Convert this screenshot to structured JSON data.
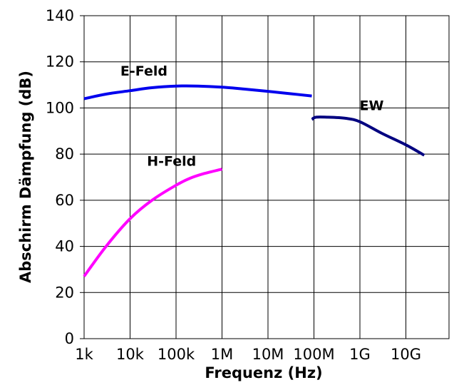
{
  "chart_data": {
    "type": "line",
    "xlabel": "Frequenz (Hz)",
    "ylabel": "Abschirm Dämpfung (dB)",
    "x_scale": "log",
    "xlim": [
      1000,
      100000000000
    ],
    "ylim": [
      0,
      140
    ],
    "grid": true,
    "x_ticks": [
      {
        "value": 1000,
        "label": "1k"
      },
      {
        "value": 10000,
        "label": "10k"
      },
      {
        "value": 100000,
        "label": "100k"
      },
      {
        "value": 1000000,
        "label": "1M"
      },
      {
        "value": 10000000,
        "label": "10M"
      },
      {
        "value": 100000000,
        "label": "100M"
      },
      {
        "value": 1000000000,
        "label": "1G"
      },
      {
        "value": 10000000000,
        "label": "10G"
      }
    ],
    "y_ticks": [
      0,
      20,
      40,
      60,
      80,
      100,
      120,
      140
    ],
    "series": [
      {
        "name": "E-Feld",
        "color": "#0000ee",
        "label_at": [
          20000,
          114
        ],
        "points": [
          [
            1000,
            104
          ],
          [
            3000,
            106
          ],
          [
            10000,
            107.5
          ],
          [
            30000,
            108.8
          ],
          [
            100000,
            109.5
          ],
          [
            300000,
            109.5
          ],
          [
            1000000,
            109
          ],
          [
            3000000,
            108.2
          ],
          [
            10000000,
            107.2
          ],
          [
            30000000,
            106.2
          ],
          [
            90000000,
            105.2
          ]
        ]
      },
      {
        "name": "H-Feld",
        "color": "#ff00ff",
        "label_at": [
          80000,
          75
        ],
        "points": [
          [
            1000,
            27
          ],
          [
            3000,
            40
          ],
          [
            10000,
            52
          ],
          [
            30000,
            60
          ],
          [
            100000,
            66.5
          ],
          [
            200000,
            69.5
          ],
          [
            400000,
            71.5
          ],
          [
            1000000,
            73.5
          ]
        ]
      },
      {
        "name": "EW",
        "color": "#000080",
        "label_at": [
          1800000000,
          99
        ],
        "points": [
          [
            90000000,
            95
          ],
          [
            110000000,
            96
          ],
          [
            200000000,
            96
          ],
          [
            500000000,
            95.5
          ],
          [
            1000000000,
            94
          ],
          [
            3000000000,
            89
          ],
          [
            10000000000,
            84
          ],
          [
            25000000000,
            79.5
          ]
        ]
      }
    ]
  }
}
